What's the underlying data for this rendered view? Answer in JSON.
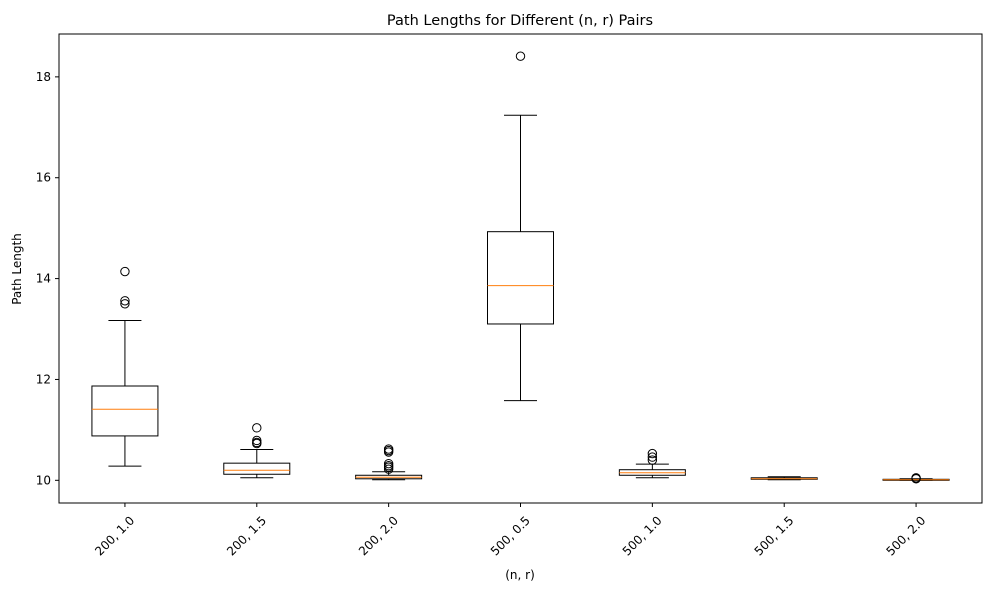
{
  "chart_data": {
    "type": "boxplot",
    "title": "Path Lengths for Different (n, r) Pairs",
    "xlabel": "(n, r)",
    "ylabel": "Path Length",
    "ylim": [
      9.55,
      18.85
    ],
    "yticks": [
      10,
      12,
      14,
      16,
      18
    ],
    "ytick_labels": [
      "10",
      "12",
      "14",
      "16",
      "18"
    ],
    "grid": false,
    "colors": {
      "box": "#000000",
      "median": "#ff7f0e",
      "background": "#ffffff"
    },
    "categories": [
      "200, 1.0",
      "200, 1.5",
      "200, 2.0",
      "500, 0.5",
      "500, 1.0",
      "500, 1.5",
      "500, 2.0"
    ],
    "boxes": [
      {
        "label": "200, 1.0",
        "whisker_low": 10.28,
        "q1": 10.88,
        "median": 11.41,
        "q3": 11.87,
        "whisker_high": 13.17,
        "outliers": [
          14.14,
          13.56,
          13.5
        ]
      },
      {
        "label": "200, 1.5",
        "whisker_low": 10.05,
        "q1": 10.12,
        "median": 10.2,
        "q3": 10.34,
        "whisker_high": 10.61,
        "outliers": [
          11.04,
          10.79,
          10.75,
          10.73
        ]
      },
      {
        "label": "200, 2.0",
        "whisker_low": 10.01,
        "q1": 10.03,
        "median": 10.06,
        "q3": 10.1,
        "whisker_high": 10.17,
        "outliers": [
          10.62,
          10.59,
          10.56,
          10.33,
          10.29,
          10.26,
          10.22
        ]
      },
      {
        "label": "500, 0.5",
        "whisker_low": 11.58,
        "q1": 13.1,
        "median": 13.86,
        "q3": 14.93,
        "whisker_high": 17.24,
        "outliers": [
          18.41
        ]
      },
      {
        "label": "500, 1.0",
        "whisker_low": 10.05,
        "q1": 10.1,
        "median": 10.15,
        "q3": 10.21,
        "whisker_high": 10.32,
        "outliers": [
          10.53,
          10.46,
          10.4
        ]
      },
      {
        "label": "500, 1.5",
        "whisker_low": 10.01,
        "q1": 10.02,
        "median": 10.03,
        "q3": 10.05,
        "whisker_high": 10.07,
        "outliers": []
      },
      {
        "label": "500, 2.0",
        "whisker_low": 10.0,
        "q1": 10.0,
        "median": 10.01,
        "q3": 10.02,
        "whisker_high": 10.03,
        "outliers": [
          10.05,
          10.04,
          10.03
        ]
      }
    ]
  }
}
